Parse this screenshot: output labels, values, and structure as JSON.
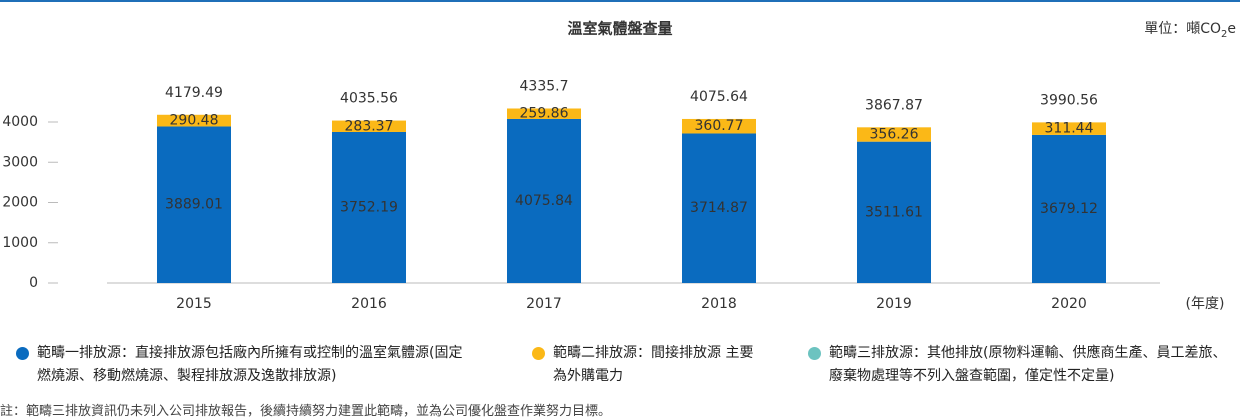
{
  "chart_data": {
    "type": "stacked-bar",
    "title": "溫室氣體盤查量",
    "unit": {
      "text": "單位：噸CO",
      "subscript": "2",
      "suffix": "e"
    },
    "categories": [
      "2015",
      "2016",
      "2017",
      "2018",
      "2019",
      "2020"
    ],
    "x_label": "(年度)",
    "series": [
      {
        "name": "範疇一排放源：直接排放源包括廠內所擁有或控制的溫室氣體源(固定燃燒源、移動燃燒源、製程排放源及逸散排放源)",
        "color": "#0a6bbf",
        "values": [
          3889.01,
          3752.19,
          4075.84,
          3714.87,
          3511.61,
          3679.12
        ]
      },
      {
        "name": "範疇二排放源：間接排放源 主要為外購電力",
        "color": "#fbb817",
        "values": [
          290.48,
          283.37,
          259.86,
          360.77,
          356.26,
          311.44
        ]
      },
      {
        "name": "範疇三排放源：其他排放(原物料運輸、供應商生產、員工差旅、廢棄物處理等不列入盤查範圍，僅定性不定量)",
        "color": "#6cc3c0",
        "values": [
          null,
          null,
          null,
          null,
          null,
          null
        ]
      }
    ],
    "totals": [
      4179.49,
      4035.56,
      4335.7,
      4075.64,
      3867.87,
      3990.56
    ],
    "ylim": [
      0,
      5000
    ],
    "yticks": [
      0,
      1000,
      2000,
      3000,
      4000
    ],
    "note": "註：範疇三排放資訊仍未列入公司排放報告，後續持續努力建置此範疇，並為公司優化盤查作業努力目標。"
  }
}
